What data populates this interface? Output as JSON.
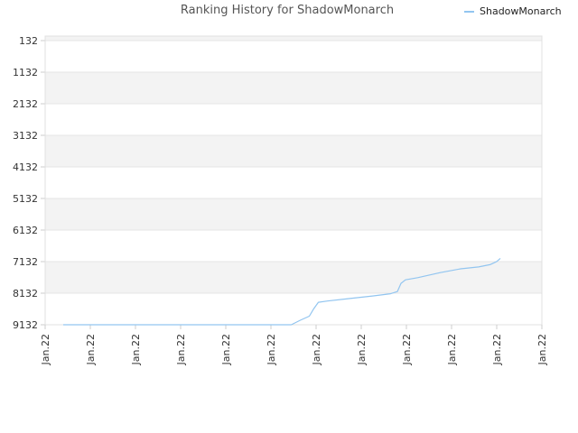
{
  "chart_data": {
    "type": "line",
    "title": "Ranking History for ShadowMonarch",
    "xlabel": "",
    "ylabel": "",
    "y_inverted": true,
    "ylim": [
      132,
      9132
    ],
    "y_ticks": [
      132,
      1132,
      2132,
      3132,
      4132,
      5132,
      6132,
      7132,
      8132,
      9132
    ],
    "x_tick_labels": [
      "Jan.22",
      "Jan.22",
      "Jan.22",
      "Jan.22",
      "Jan.22",
      "Jan.22",
      "Jan.22",
      "Jan.22",
      "Jan.22",
      "Jan.22",
      "Jan.22",
      "Jan.22"
    ],
    "legend": {
      "position": "top-right"
    },
    "grid": {
      "horizontal": true,
      "alternating_bands": true
    },
    "colors": {
      "line": "#92c5f0",
      "band": "#f3f3f3",
      "grid": "#e6e6e6"
    },
    "series": [
      {
        "name": "ShadowMonarch",
        "x_index": [
          0.4,
          1.0,
          2.0,
          3.0,
          4.0,
          5.0,
          5.45,
          5.65,
          5.85,
          5.95,
          6.05,
          6.25,
          6.75,
          7.25,
          7.65,
          7.8,
          7.88,
          7.98,
          8.25,
          8.75,
          9.2,
          9.6,
          9.85,
          10.0,
          10.08
        ],
        "rank": [
          9132,
          9132,
          9132,
          9132,
          9132,
          9132,
          9132,
          8990,
          8860,
          8620,
          8420,
          8380,
          8300,
          8220,
          8150,
          8080,
          7820,
          7710,
          7640,
          7480,
          7360,
          7300,
          7230,
          7130,
          7030
        ]
      }
    ]
  }
}
